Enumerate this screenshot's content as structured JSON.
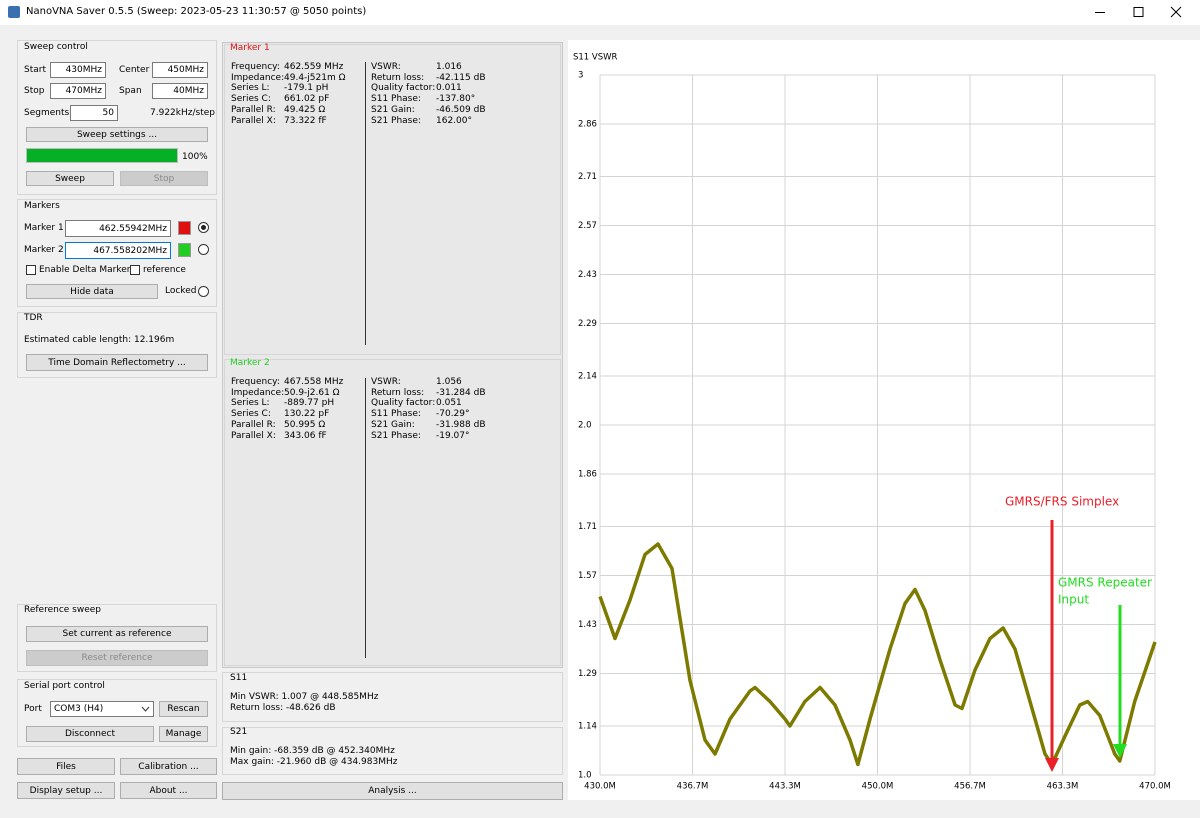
{
  "title_bar": {
    "title": "NanoVNA Saver 0.5.5 (Sweep: 2023-05-23 11:30:57 @ 5050 points)"
  },
  "sweep_control": {
    "title": "Sweep control",
    "start_label": "Start",
    "start": "430MHz",
    "center_label": "Center",
    "center": "450MHz",
    "stop_label": "Stop",
    "stop": "470MHz",
    "span_label": "Span",
    "span": "40MHz",
    "segments_label": "Segments",
    "segments": "50",
    "step": "7.922kHz/step",
    "settings_button": "Sweep settings ...",
    "progress": {
      "value": 100,
      "label": "100%"
    },
    "progress_color": "#06b025",
    "sweep_button": "Sweep",
    "stop_button": "Stop"
  },
  "markers": {
    "title": "Markers",
    "marker1_label": "Marker 1",
    "marker1": "462.55942MHz",
    "marker1_color": "#e01010",
    "marker2_label": "Marker 2",
    "marker2": "467.558202MHz",
    "marker2_color": "#22cc22",
    "delta": "Enable Delta Marker",
    "reference": "reference",
    "hide_button": "Hide data",
    "locked": "Locked"
  },
  "tdr": {
    "title": "TDR",
    "cable_length": "Estimated cable length:  12.196m",
    "button": "Time Domain Reflectometry ..."
  },
  "reference_sweep": {
    "title": "Reference sweep",
    "set_button": "Set current as reference",
    "reset_button": "Reset reference"
  },
  "serial_port": {
    "title": "Serial port control",
    "port_label": "Port",
    "port": "COM3 (H4)",
    "rescan": "Rescan",
    "disconnect": "Disconnect",
    "manage": "Manage"
  },
  "bottom_buttons": {
    "files": "Files",
    "calibration": "Calibration ...",
    "display": "Display setup ...",
    "about": "About ...",
    "analysis": "Analysis ..."
  },
  "marker1_panel": {
    "title": "Marker 1",
    "left": [
      [
        "Frequency:",
        "462.559 MHz"
      ],
      [
        "Impedance:",
        "49.4-j521m Ω"
      ],
      [
        "Series L:",
        "-179.1 pH"
      ],
      [
        "Series C:",
        "661.02 pF"
      ],
      [
        "Parallel R:",
        "49.425 Ω"
      ],
      [
        "Parallel X:",
        "73.322 fF"
      ]
    ],
    "right": [
      [
        "VSWR:",
        "1.016"
      ],
      [
        "Return loss:",
        "-42.115 dB"
      ],
      [
        "Quality factor:",
        "0.011"
      ],
      [
        "S11 Phase:",
        "-137.80°"
      ],
      [
        "S21 Gain:",
        "-46.509 dB"
      ],
      [
        "S21 Phase:",
        "162.00°"
      ]
    ]
  },
  "marker2_panel": {
    "title": "Marker 2",
    "left": [
      [
        "Frequency:",
        "467.558 MHz"
      ],
      [
        "Impedance:",
        "50.9-j2.61 Ω"
      ],
      [
        "Series L:",
        "-889.77 pH"
      ],
      [
        "Series C:",
        "130.22 pF"
      ],
      [
        "Parallel R:",
        "50.995 Ω"
      ],
      [
        "Parallel X:",
        "343.06 fF"
      ]
    ],
    "right": [
      [
        "VSWR:",
        "1.056"
      ],
      [
        "Return loss:",
        "-31.284 dB"
      ],
      [
        "Quality factor:",
        "0.051"
      ],
      [
        "S11 Phase:",
        "-70.29°"
      ],
      [
        "S21 Gain:",
        "-31.988 dB"
      ],
      [
        "S21 Phase:",
        "-19.07°"
      ]
    ]
  },
  "s11_panel": {
    "title": "S11",
    "lines": [
      "Min VSWR:  1.007 @ 448.585MHz",
      "Return loss:  -48.626 dB"
    ]
  },
  "s21_panel": {
    "title": "S21",
    "lines": [
      "Min gain:  -68.359 dB @ 452.340MHz",
      "Max gain:  -21.960 dB @ 434.983MHz"
    ]
  },
  "plot": {
    "type": "line",
    "title": "S11 VSWR",
    "color": "#7d7a00",
    "grid": true,
    "x": [
      430.0,
      431.08,
      432.16,
      433.24,
      434.18,
      435.19,
      436.49,
      437.57,
      438.29,
      439.37,
      440.81,
      441.17,
      442.25,
      443.33,
      443.69,
      444.77,
      445.86,
      446.94,
      448.02,
      448.59,
      449.46,
      450.9,
      451.98,
      452.7,
      453.42,
      454.5,
      455.59,
      456.09,
      457.03,
      458.11,
      459.05,
      459.91,
      460.99,
      462.07,
      462.58,
      463.5,
      464.58,
      465.15,
      466.02,
      467.1,
      467.46,
      468.54,
      470.0
    ],
    "values": [
      1.51,
      1.39,
      1.5,
      1.63,
      1.66,
      1.59,
      1.27,
      1.1,
      1.06,
      1.16,
      1.24,
      1.25,
      1.21,
      1.16,
      1.14,
      1.21,
      1.25,
      1.2,
      1.1,
      1.03,
      1.16,
      1.36,
      1.49,
      1.53,
      1.47,
      1.33,
      1.2,
      1.19,
      1.3,
      1.39,
      1.42,
      1.36,
      1.21,
      1.06,
      1.03,
      1.11,
      1.2,
      1.21,
      1.17,
      1.06,
      1.04,
      1.21,
      1.38
    ],
    "xlim": [
      430,
      470
    ],
    "ylim": [
      1,
      3
    ],
    "xticks": [
      {
        "value": 430,
        "label": "430.0M"
      },
      {
        "value": 436.667,
        "label": "436.7M"
      },
      {
        "value": 443.333,
        "label": "443.3M"
      },
      {
        "value": 450,
        "label": "450.0M"
      },
      {
        "value": 456.667,
        "label": "456.7M"
      },
      {
        "value": 463.333,
        "label": "463.3M"
      },
      {
        "value": 470,
        "label": "470.0M"
      }
    ],
    "yticks": [
      {
        "value": 1,
        "label": "1.0"
      },
      1.14,
      1.29,
      1.43,
      1.57,
      1.71,
      1.86,
      {
        "value": 2,
        "label": "2.0"
      },
      2.14,
      2.29,
      2.43,
      2.57,
      2.71,
      2.86,
      3
    ],
    "annotations": [
      {
        "lines": [
          "GMRS/FRS Simplex"
        ],
        "color": "#e8202a"
      },
      {
        "lines": [
          "GMRS Repeater",
          "Input"
        ],
        "color": "#22dd22"
      }
    ]
  }
}
